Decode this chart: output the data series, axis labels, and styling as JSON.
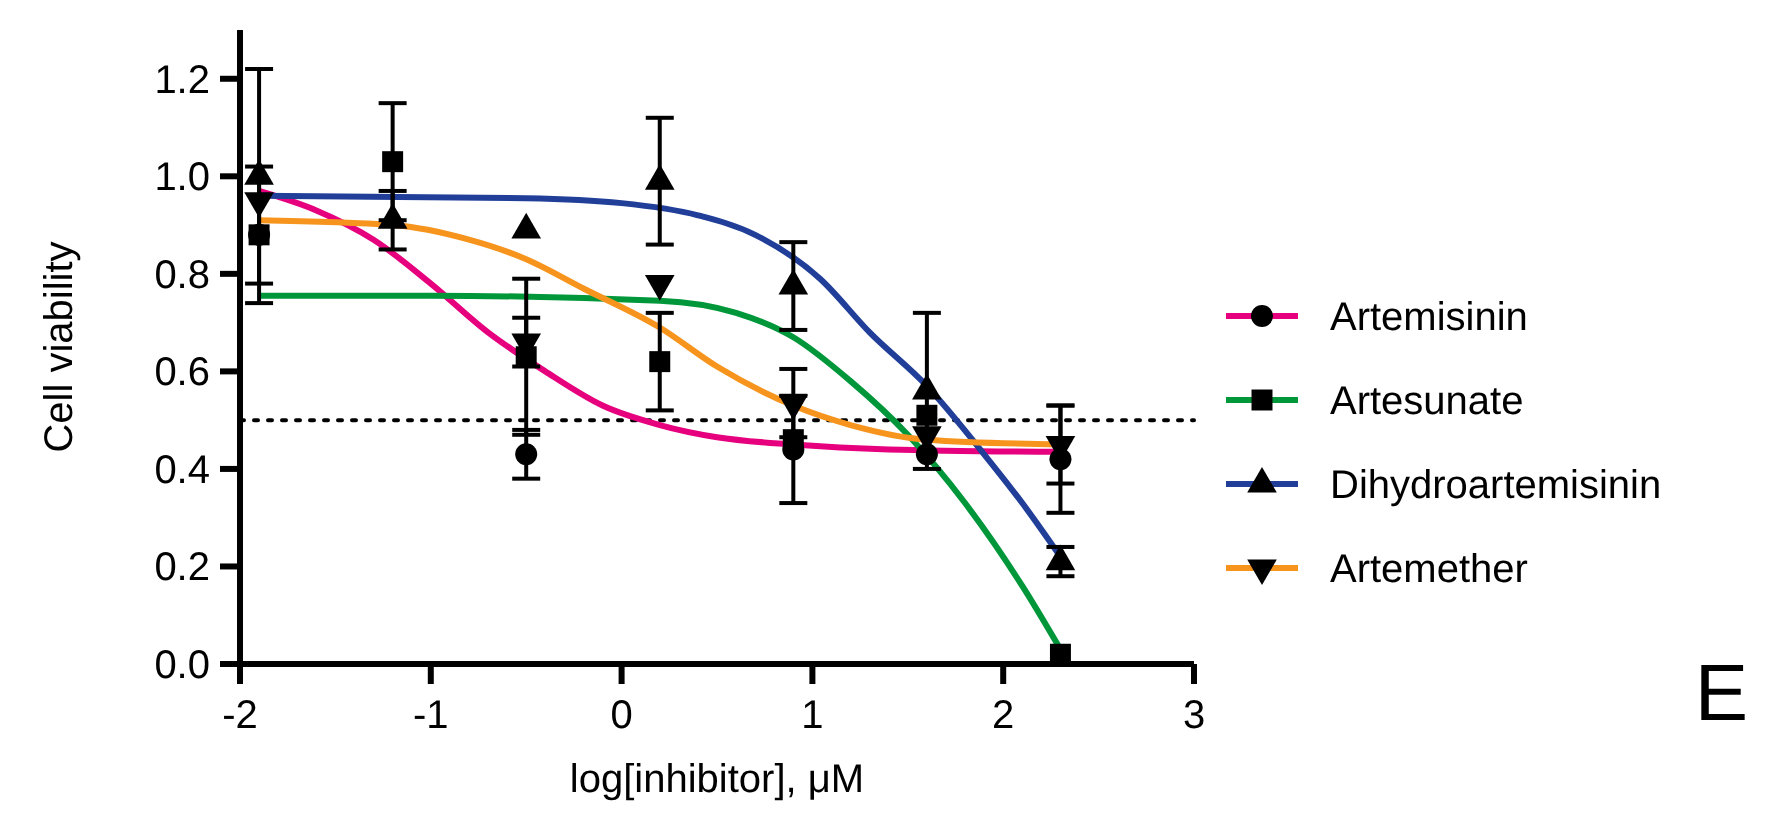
{
  "chart_data": {
    "type": "line",
    "xlabel": "log[inhibitor], μM",
    "ylabel": "Cell viability",
    "xlim": [
      -2,
      3
    ],
    "xticks": [
      -2,
      -1,
      0,
      1,
      2,
      3
    ],
    "ylim": [
      0,
      1.3
    ],
    "yticks": [
      {
        "value": 0,
        "label": "0.0"
      },
      {
        "value": 0.2,
        "label": "0.2"
      },
      {
        "value": 0.4,
        "label": "0.4"
      },
      {
        "value": 0.6,
        "label": "0.6"
      },
      {
        "value": 0.8,
        "label": "0.8"
      },
      {
        "value": 1,
        "label": "1.0"
      },
      {
        "value": 1.2,
        "label": "1.2"
      }
    ],
    "legend": "right",
    "grid": false,
    "ref_lines": [
      {
        "axis": "y",
        "value": 0.5,
        "label": null,
        "line_style": "dotted",
        "color": "#000000"
      }
    ],
    "annotations": [
      "E"
    ],
    "series": [
      {
        "name": "Artemisinin",
        "color": "#e6007e",
        "marker": "none",
        "x": [
          -1.9,
          -1.6,
          -1.3,
          -1.0,
          -0.7,
          -0.4,
          -0.1,
          0.2,
          0.5,
          0.9,
          1.4,
          2.3
        ],
        "values": [
          0.97,
          0.93,
          0.87,
          0.78,
          0.68,
          0.6,
          0.53,
          0.49,
          0.465,
          0.45,
          0.44,
          0.435
        ]
      },
      {
        "name": "Artesunate",
        "color": "#00973a",
        "marker": "none",
        "x": [
          -1.9,
          -1.0,
          0.2,
          0.6,
          0.9,
          1.2,
          1.5,
          1.8,
          2.1,
          2.3
        ],
        "values": [
          0.755,
          0.755,
          0.745,
          0.72,
          0.67,
          0.58,
          0.47,
          0.33,
          0.16,
          0.03
        ]
      },
      {
        "name": "Dihydroartemisinin",
        "color": "#213f99",
        "marker": "none",
        "x": [
          -1.9,
          -0.5,
          0,
          0.4,
          0.7,
          1.04,
          1.3,
          1.6,
          1.9,
          2.1,
          2.3
        ],
        "values": [
          0.96,
          0.955,
          0.945,
          0.92,
          0.88,
          0.79,
          0.68,
          0.57,
          0.43,
          0.33,
          0.22
        ]
      },
      {
        "name": "Artemether",
        "color": "#f7941d",
        "marker": "none",
        "x": [
          -1.9,
          -1.2,
          -0.8,
          -0.5,
          -0.2,
          0.2,
          0.5,
          0.9,
          1.2,
          1.6,
          2.3
        ],
        "values": [
          0.91,
          0.9,
          0.87,
          0.83,
          0.77,
          0.69,
          0.61,
          0.53,
          0.49,
          0.46,
          0.45
        ]
      },
      {
        "type": "scatter",
        "color": "#000000",
        "marker": "circle",
        "x": [
          -1.9,
          -1.2,
          -0.5,
          0.2,
          0.9,
          1.6,
          2.3
        ],
        "values": [
          0.88,
          null,
          0.43,
          null,
          0.44,
          0.43,
          0.42
        ],
        "errors": [
          null,
          null,
          0.05,
          null,
          0.11,
          null,
          0.11
        ]
      },
      {
        "type": "scatter",
        "color": "#000000",
        "marker": "square",
        "x": [
          -1.9,
          -1.2,
          -0.5,
          0.2,
          0.9,
          1.6,
          2.3
        ],
        "values": [
          0.88,
          1.03,
          0.63,
          0.62,
          0.46,
          0.51,
          0.02
        ],
        "errors": [
          0.14,
          0.12,
          0.16,
          0.1,
          null,
          null,
          null
        ]
      },
      {
        "type": "scatter",
        "color": "#000000",
        "marker": "triangle",
        "x": [
          -1.9,
          -1.2,
          -0.5,
          0.2,
          0.9,
          1.6,
          2.3
        ],
        "values": [
          1.0,
          0.91,
          0.89,
          0.99,
          0.775,
          0.56,
          0.21
        ],
        "errors": [
          0.22,
          0.06,
          null,
          0.13,
          0.09,
          0.16,
          0.03
        ]
      },
      {
        "type": "scatter",
        "color": "#000000",
        "marker": "triangle-down",
        "x": [
          -1.9,
          -1.2,
          -0.5,
          0.2,
          0.9,
          1.6,
          2.3
        ],
        "values": [
          0.95,
          null,
          0.66,
          0.78,
          0.535,
          0.47,
          0.45
        ],
        "errors": [
          null,
          null,
          0.05,
          null,
          0.07,
          null,
          0.08
        ]
      }
    ]
  }
}
